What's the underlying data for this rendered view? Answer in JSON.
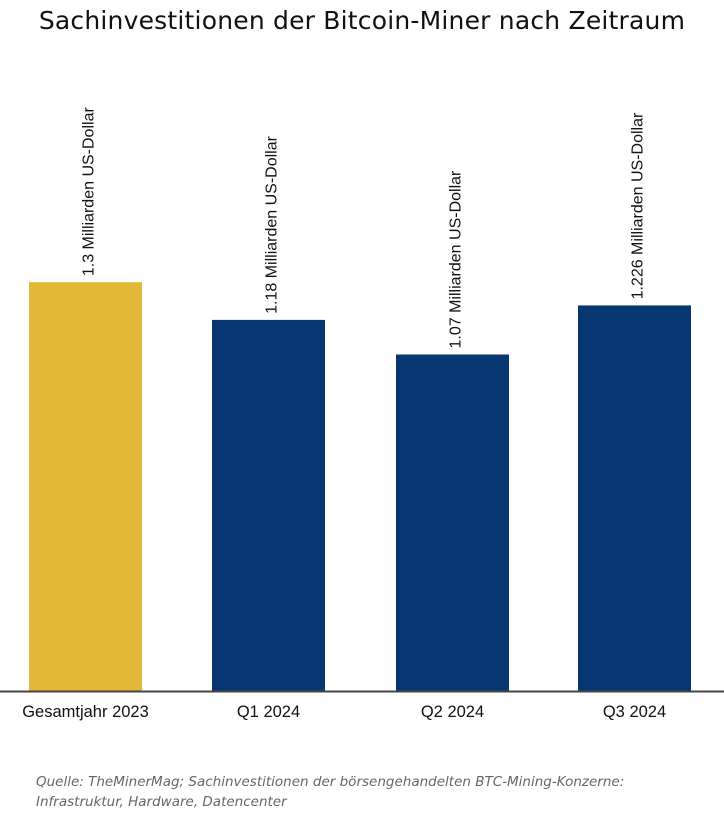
{
  "title": "Sachinvestitionen der Bitcoin-Miner nach Zeitraum",
  "source": {
    "line1": "Quelle: TheMinerMag; Sachinvestitionen der börsengehandelten BTC-Mining-Konzerne:",
    "line2": "Infrastruktur, Hardware, Datencenter"
  },
  "chart_data": {
    "type": "bar",
    "title": "Sachinvestitionen der Bitcoin-Miner nach Zeitraum",
    "categories": [
      "Gesamtjahr 2023",
      "Q1 2024",
      "Q2 2024",
      "Q3 2024"
    ],
    "values": [
      1.3,
      1.18,
      1.07,
      1.226
    ],
    "data_labels": [
      "1.3 Milliarden US-Dollar",
      "1.18 Milliarden US-Dollar",
      "1.07 Milliarden US-Dollar",
      "1.226 Milliarden US-Dollar"
    ],
    "colors": [
      "#E3B838",
      "#083672",
      "#083672",
      "#083672"
    ],
    "axis_color": "#444444",
    "ylim": [
      0,
      2.0
    ],
    "grid": false,
    "legend": "none",
    "xlabel": "",
    "ylabel": ""
  }
}
